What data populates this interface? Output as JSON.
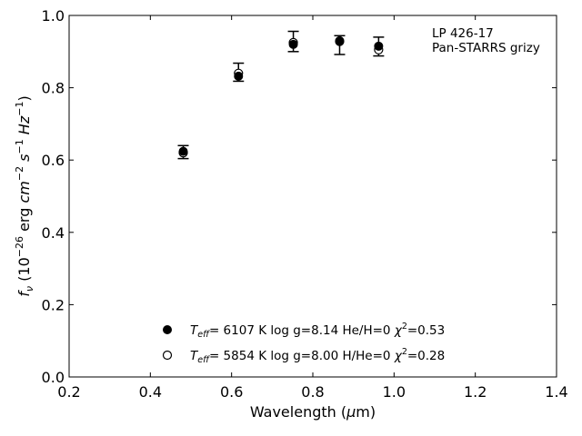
{
  "chart_data": {
    "type": "scatter",
    "xlabel_prefix": "Wavelength (",
    "xlabel_mu": "μ",
    "xlabel_suffix": "m)",
    "ylabel_f": "f",
    "ylabel_nu": "ν",
    "ylabel_open": " (10",
    "ylabel_exp1": "−26",
    "ylabel_erg": " erg ",
    "ylabel_cm": "cm",
    "ylabel_exp2": "−2",
    "ylabel_s": " s",
    "ylabel_exp3": "−1",
    "ylabel_hz": " Hz",
    "ylabel_exp4": "−1",
    "ylabel_close": ")",
    "xlim": [
      0.2,
      1.4
    ],
    "ylim": [
      0.0,
      1.0
    ],
    "xticks": [
      0.2,
      0.4,
      0.6,
      0.8,
      1.0,
      1.2,
      1.4
    ],
    "xtick_labels": [
      "0.2",
      "0.4",
      "0.6",
      "0.8",
      "1.0",
      "1.2",
      "1.4"
    ],
    "yticks": [
      0.0,
      0.2,
      0.4,
      0.6,
      0.8,
      1.0
    ],
    "ytick_labels": [
      "0.0",
      "0.2",
      "0.4",
      "0.6",
      "0.8",
      "1.0"
    ],
    "grid": false,
    "annotation": [
      "LP 426-17",
      "Pan-STARRS grizy"
    ],
    "observed": {
      "x": [
        0.481,
        0.617,
        0.752,
        0.866,
        0.962
      ],
      "y": [
        0.622,
        0.843,
        0.928,
        0.918,
        0.914
      ],
      "err": [
        0.018,
        0.025,
        0.028,
        0.026,
        0.026
      ]
    },
    "series": [
      {
        "name": "Teff= 6107 K log g=8.14 He/H=0 χ2=0.53",
        "marker": "filled",
        "x": [
          0.481,
          0.617,
          0.752,
          0.866,
          0.962
        ],
        "y": [
          0.624,
          0.832,
          0.92,
          0.93,
          0.915
        ]
      },
      {
        "name": "Teff= 5854 K log g=8.00 H/He=0 χ2=0.28",
        "marker": "open",
        "x": [
          0.481,
          0.617,
          0.752,
          0.866,
          0.962
        ],
        "y": [
          0.62,
          0.84,
          0.925,
          0.928,
          0.905
        ]
      }
    ],
    "legend_placement": "bottom-center",
    "legend": [
      {
        "t": "T",
        "sub": "eff",
        "rest": "=  6107 K  log g=8.14  He/H=0  ",
        "chi": "χ",
        "sup": "2",
        "val": "=0.53"
      },
      {
        "t": "T",
        "sub": "eff",
        "rest": "=  5854 K  log g=8.00  H/He=0  ",
        "chi": "χ",
        "sup": "2",
        "val": "=0.28"
      }
    ],
    "colors": {
      "marker": "#000000",
      "axes": "#000000",
      "background": "#ffffff"
    }
  }
}
